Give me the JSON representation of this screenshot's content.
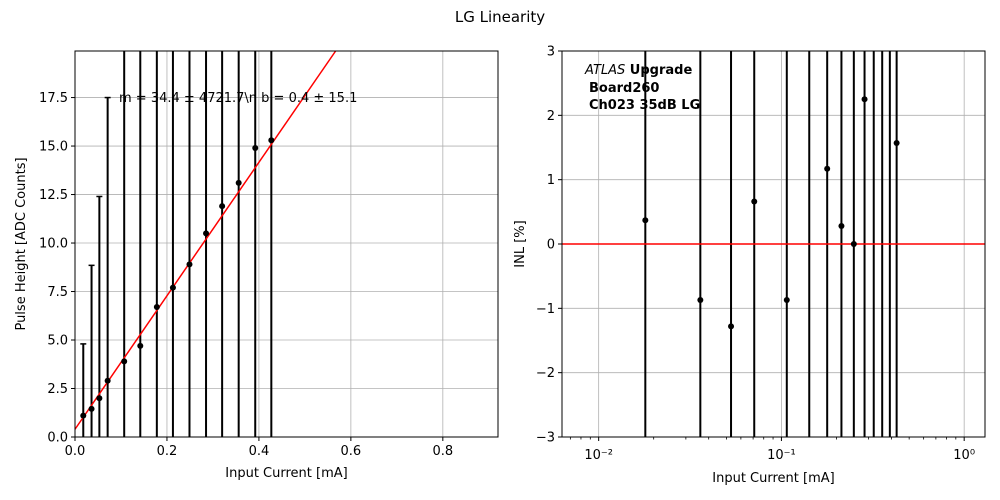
{
  "figure": {
    "title": "LG Linearity"
  },
  "chart_data": [
    {
      "type": "scatter",
      "xlabel": "Input Current [mA]",
      "ylabel": "Pulse Height [ADC Counts]",
      "xlim": [
        0,
        0.92
      ],
      "ylim": [
        0,
        19.9
      ],
      "x_ticks": [
        "0.0",
        "0.2",
        "0.4",
        "0.6",
        "0.8"
      ],
      "x_tick_values": [
        0,
        0.2,
        0.4,
        0.6,
        0.8
      ],
      "y_ticks": [
        "0.0",
        "2.5",
        "5.0",
        "7.5",
        "10.0",
        "12.5",
        "15.0",
        "17.5"
      ],
      "y_tick_values": [
        0,
        2.5,
        5,
        7.5,
        10,
        12.5,
        15,
        17.5
      ],
      "grid": true,
      "series": [
        {
          "x": [
            0.018,
            0.036,
            0.053,
            0.071,
            0.107,
            0.142,
            0.178,
            0.213,
            0.249,
            0.285,
            0.32,
            0.356,
            0.392,
            0.427
          ],
          "y": [
            1.1,
            1.45,
            2.0,
            2.9,
            3.9,
            4.7,
            6.7,
            7.7,
            8.9,
            10.5,
            11.9,
            13.1,
            14.9,
            15.3
          ],
          "err_low": [
            1.1,
            1.45,
            2.0,
            2.9,
            3.9,
            4.7,
            6.7,
            7.7,
            8.9,
            10.5,
            11.9,
            13.1,
            14.9,
            15.3
          ],
          "err_high": [
            3.7,
            7.4,
            10.4,
            14.6,
            20,
            20,
            20,
            20,
            20,
            20,
            20,
            20,
            20,
            20
          ],
          "color": "#000000"
        }
      ],
      "fit_line": {
        "slope": 34.4,
        "intercept": 0.4,
        "color": "#ff0000"
      },
      "annotation": "m = 34.4 ± 4721.7\\n b = 0.4 ± 15.1"
    },
    {
      "type": "scatter",
      "xlabel": "Input Current [mA]",
      "ylabel": "INL [%]",
      "xscale": "log",
      "xlim": [
        0.0063,
        1.3
      ],
      "ylim": [
        -3,
        3
      ],
      "x_ticks": [
        "10⁻²",
        "10⁻¹",
        "10⁰"
      ],
      "x_tick_values": [
        0.01,
        0.1,
        1
      ],
      "y_ticks": [
        "−3",
        "−2",
        "−1",
        "0",
        "1",
        "2",
        "3"
      ],
      "y_tick_values": [
        -3,
        -2,
        -1,
        0,
        1,
        2,
        3
      ],
      "grid": true,
      "series": [
        {
          "x": [
            0.018,
            0.036,
            0.053,
            0.071,
            0.107,
            0.178,
            0.213,
            0.249,
            0.285,
            0.427
          ],
          "y": [
            0.37,
            -0.87,
            -1.28,
            0.66,
            -0.87,
            1.17,
            0.28,
            0.0,
            2.25,
            1.57
          ],
          "color": "#000000"
        }
      ],
      "error_bar_x": [
        0.018,
        0.036,
        0.053,
        0.071,
        0.107,
        0.142,
        0.178,
        0.213,
        0.249,
        0.285,
        0.32,
        0.356,
        0.392,
        0.427
      ],
      "reference_line": {
        "y": 0,
        "color": "#ff0000"
      },
      "label": {
        "atlas": "ATLAS",
        "upgrade": " Upgrade",
        "line2": "Board260",
        "line3": "Ch023 35dB LG"
      }
    }
  ]
}
